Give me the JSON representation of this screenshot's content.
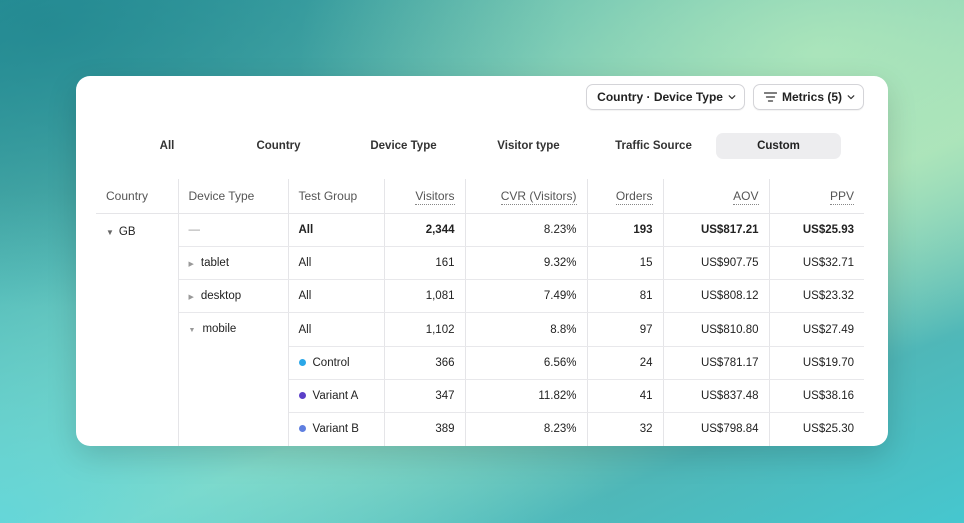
{
  "toolbar": {
    "group_by_label": "Country · Device Type",
    "metrics_label": "Metrics (5)"
  },
  "tabs": [
    "All",
    "Country",
    "Device Type",
    "Visitor type",
    "Traffic Source",
    "Custom"
  ],
  "active_tab": "Custom",
  "table": {
    "headers": [
      "Country",
      "Device Type",
      "Test Group",
      "Visitors",
      "CVR (Visitors)",
      "Orders",
      "AOV",
      "PPV"
    ],
    "country": "GB",
    "rows": [
      {
        "device": "—",
        "group": "All",
        "visitors": "2,344",
        "cvr": "8.23%",
        "orders": "193",
        "aov": "US$817.21",
        "ppv": "US$25.93"
      },
      {
        "device": "tablet",
        "group": "All",
        "visitors": "161",
        "cvr": "9.32%",
        "orders": "15",
        "aov": "US$907.75",
        "ppv": "US$32.71"
      },
      {
        "device": "desktop",
        "group": "All",
        "visitors": "1,081",
        "cvr": "7.49%",
        "orders": "81",
        "aov": "US$808.12",
        "ppv": "US$23.32"
      },
      {
        "device": "mobile",
        "group": "All",
        "visitors": "1,102",
        "cvr": "8.8%",
        "orders": "97",
        "aov": "US$810.80",
        "ppv": "US$27.49"
      },
      {
        "group": "Control",
        "visitors": "366",
        "cvr": "6.56%",
        "orders": "24",
        "aov": "US$781.17",
        "ppv": "US$19.70"
      },
      {
        "group": "Variant A",
        "visitors": "347",
        "cvr": "11.82%",
        "orders": "41",
        "aov": "US$837.48",
        "ppv": "US$38.16"
      },
      {
        "group": "Variant B",
        "visitors": "389",
        "cvr": "8.23%",
        "orders": "32",
        "aov": "US$798.84",
        "ppv": "US$25.30"
      }
    ]
  },
  "colors": {
    "control": "#2aa7e8",
    "variant_a": "#5b3fc8",
    "variant_b": "#5f7fe0"
  }
}
